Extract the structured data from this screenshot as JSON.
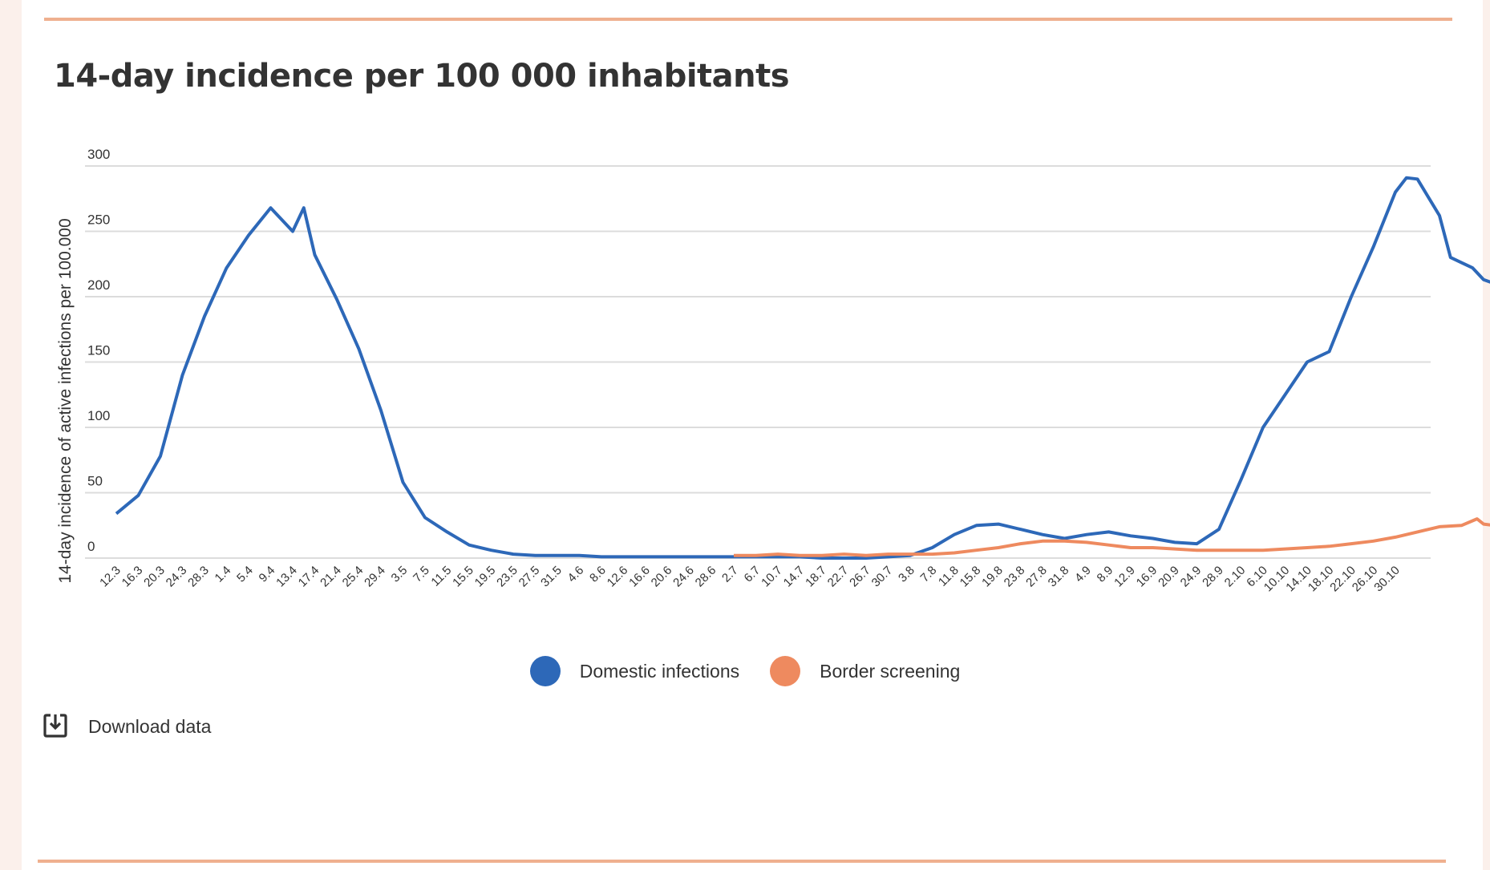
{
  "title": "14-day incidence per 100 000 inhabitants",
  "download_label": "Download data",
  "icons": {
    "download": "download-icon"
  },
  "chart_data": {
    "type": "line",
    "title": "14-day incidence per 100 000 inhabitants",
    "ylabel": "14-day incidence of active infections per 100.000",
    "xlabel": "",
    "ylim": [
      0,
      300
    ],
    "yticks": [
      0,
      50,
      100,
      150,
      200,
      250,
      300
    ],
    "grid": true,
    "legend_position": "bottom-center",
    "x_tick_labels": [
      "12.3",
      "16.3",
      "20.3",
      "24.3",
      "28.3",
      "1.4",
      "5.4",
      "9.4",
      "13.4",
      "17.4",
      "21.4",
      "25.4",
      "29.4",
      "3.5",
      "7.5",
      "11.5",
      "15.5",
      "19.5",
      "23.5",
      "27.5",
      "31.5",
      "4.6",
      "8.6",
      "12.6",
      "16.6",
      "20.6",
      "24.6",
      "28.6",
      "2.7",
      "6.7",
      "10.7",
      "14.7",
      "18.7",
      "22.7",
      "26.7",
      "30.7",
      "3.8",
      "7.8",
      "11.8",
      "15.8",
      "19.8",
      "23.8",
      "27.8",
      "31.8",
      "4.9",
      "8.9",
      "12.9",
      "16.9",
      "20.9",
      "24.9",
      "28.9",
      "2.10",
      "6.10",
      "10.10",
      "14.10",
      "18.10",
      "22.10",
      "26.10",
      "30.10"
    ],
    "series": [
      {
        "name": "Domestic infections",
        "color": "#2d68b8",
        "points": [
          [
            0,
            34
          ],
          [
            1,
            48
          ],
          [
            2,
            78
          ],
          [
            3,
            140
          ],
          [
            4,
            185
          ],
          [
            5,
            222
          ],
          [
            6,
            247
          ],
          [
            7,
            268
          ],
          [
            8,
            250
          ],
          [
            8.5,
            268
          ],
          [
            9,
            232
          ],
          [
            10,
            198
          ],
          [
            11,
            160
          ],
          [
            12,
            113
          ],
          [
            13,
            58
          ],
          [
            14,
            31
          ],
          [
            15,
            20
          ],
          [
            16,
            10
          ],
          [
            17,
            6
          ],
          [
            18,
            3
          ],
          [
            19,
            2
          ],
          [
            20,
            2
          ],
          [
            21,
            2
          ],
          [
            22,
            1
          ],
          [
            24,
            1
          ],
          [
            26,
            1
          ],
          [
            28,
            1
          ],
          [
            30,
            1
          ],
          [
            31,
            1
          ],
          [
            32,
            0
          ],
          [
            34,
            0
          ],
          [
            36,
            2
          ],
          [
            37,
            8
          ],
          [
            38,
            18
          ],
          [
            39,
            25
          ],
          [
            40,
            26
          ],
          [
            41,
            22
          ],
          [
            42,
            18
          ],
          [
            43,
            15
          ],
          [
            44,
            18
          ],
          [
            45,
            20
          ],
          [
            46,
            17
          ],
          [
            47,
            15
          ],
          [
            48,
            12
          ],
          [
            49,
            11
          ],
          [
            50,
            22
          ],
          [
            51,
            60
          ],
          [
            52,
            100
          ],
          [
            53,
            125
          ],
          [
            54,
            150
          ],
          [
            55,
            158
          ],
          [
            56,
            200
          ],
          [
            57,
            238
          ],
          [
            58,
            280
          ],
          [
            58.5,
            291
          ],
          [
            59,
            290
          ],
          [
            60,
            262
          ],
          [
            60.5,
            230
          ],
          [
            61,
            226
          ],
          [
            61.5,
            222
          ],
          [
            62,
            213
          ],
          [
            62.5,
            210
          ]
        ]
      },
      {
        "name": "Border screening",
        "color": "#ee8a5f",
        "points": [
          [
            28,
            2
          ],
          [
            29,
            2
          ],
          [
            30,
            3
          ],
          [
            31,
            2
          ],
          [
            32,
            2
          ],
          [
            33,
            3
          ],
          [
            34,
            2
          ],
          [
            35,
            3
          ],
          [
            36,
            3
          ],
          [
            37,
            3
          ],
          [
            38,
            4
          ],
          [
            39,
            6
          ],
          [
            40,
            8
          ],
          [
            41,
            11
          ],
          [
            42,
            13
          ],
          [
            43,
            13
          ],
          [
            44,
            12
          ],
          [
            45,
            10
          ],
          [
            46,
            8
          ],
          [
            47,
            8
          ],
          [
            48,
            7
          ],
          [
            49,
            6
          ],
          [
            50,
            6
          ],
          [
            51,
            6
          ],
          [
            52,
            6
          ],
          [
            53,
            7
          ],
          [
            54,
            8
          ],
          [
            55,
            9
          ],
          [
            56,
            11
          ],
          [
            57,
            13
          ],
          [
            58,
            16
          ],
          [
            59,
            20
          ],
          [
            60,
            24
          ],
          [
            61,
            25
          ],
          [
            61.7,
            30
          ],
          [
            62,
            26
          ],
          [
            62.5,
            25
          ]
        ]
      }
    ]
  }
}
